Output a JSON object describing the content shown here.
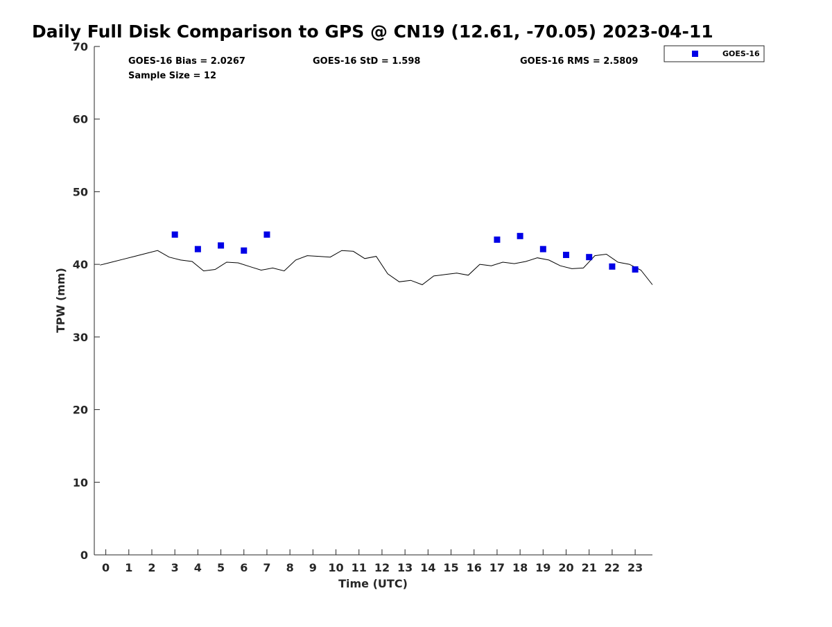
{
  "chart_data": {
    "type": "scatter",
    "title": "Daily Full Disk Comparison to GPS @ CN19 (12.61, -70.05) 2023-04-11",
    "xlabel": "Time (UTC)",
    "ylabel": "TPW (mm)",
    "xlim": [
      -0.5,
      23.75
    ],
    "ylim": [
      0,
      70
    ],
    "x_ticks": [
      0,
      1,
      2,
      3,
      4,
      5,
      6,
      7,
      8,
      9,
      10,
      11,
      12,
      13,
      14,
      15,
      16,
      17,
      18,
      19,
      20,
      21,
      22,
      23
    ],
    "y_ticks": [
      0,
      10,
      20,
      30,
      40,
      50,
      60,
      70
    ],
    "grid": false,
    "stats": {
      "bias": "GOES-16 Bias = 2.0267",
      "std": "GOES-16 StD = 1.598",
      "rms": "GOES-16 RMS = 2.5809",
      "sample_size": "Sample Size = 12"
    },
    "legend": {
      "position": "top-right outside",
      "label": "GOES-16"
    },
    "colors": {
      "goes16": "#0000e6",
      "gps_line": "#000000"
    },
    "series": [
      {
        "name": "GOES-16",
        "marker": "square",
        "x": [
          3,
          4,
          5,
          6,
          7,
          17,
          18,
          19,
          20,
          21,
          22,
          23
        ],
        "y": [
          44.1,
          42.1,
          42.6,
          41.9,
          44.1,
          43.4,
          43.9,
          42.1,
          41.3,
          41.0,
          39.7,
          39.3
        ]
      },
      {
        "marker": "line",
        "x": [
          -0.25,
          0.25,
          0.75,
          1.25,
          1.75,
          2.25,
          2.75,
          3.25,
          3.75,
          4.25,
          4.75,
          5.25,
          5.75,
          6.25,
          6.75,
          7.25,
          7.75,
          8.25,
          8.75,
          9.25,
          9.75,
          10.25,
          10.75,
          11.25,
          11.75,
          12.25,
          12.75,
          13.25,
          13.75,
          14.25,
          14.75,
          15.25,
          15.75,
          16.25,
          16.75,
          17.25,
          17.75,
          18.25,
          18.75,
          19.25,
          19.75,
          20.25,
          20.75,
          21.25,
          21.75,
          22.25,
          22.75,
          23.25,
          23.75
        ],
        "y": [
          39.9,
          40.3,
          40.7,
          41.1,
          41.5,
          41.9,
          41.0,
          40.6,
          40.4,
          39.1,
          39.3,
          40.3,
          40.2,
          39.7,
          39.2,
          39.5,
          39.1,
          40.6,
          41.2,
          41.1,
          41.0,
          41.9,
          41.8,
          40.8,
          41.1,
          38.7,
          37.6,
          37.8,
          37.2,
          38.4,
          38.6,
          38.8,
          38.5,
          40.0,
          39.8,
          40.3,
          40.1,
          40.4,
          40.9,
          40.6,
          39.8,
          39.4,
          39.5,
          41.2,
          41.4,
          40.3,
          40.0,
          39.2,
          37.2
        ]
      }
    ]
  }
}
